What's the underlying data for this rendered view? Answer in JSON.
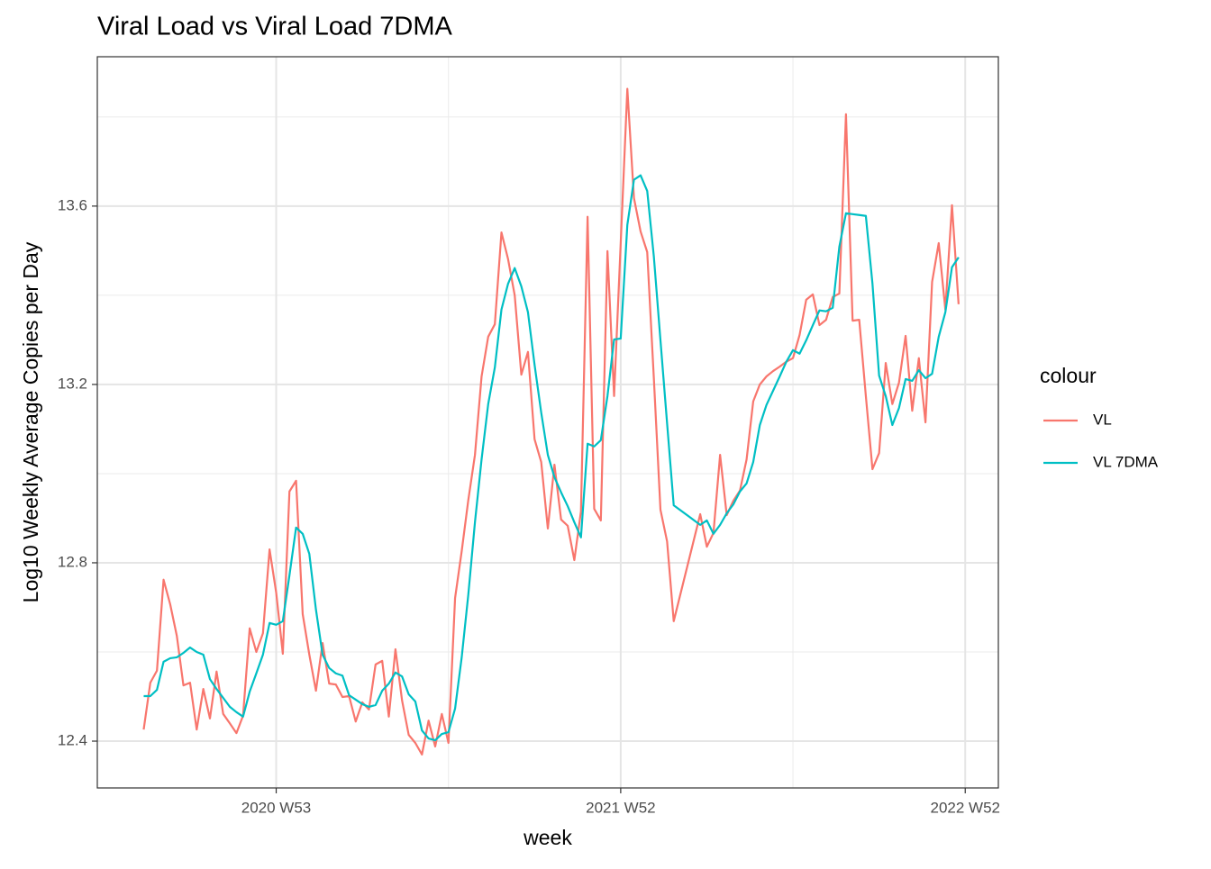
{
  "chart_data": {
    "type": "line",
    "title": "Viral Load vs Viral Load 7DMA",
    "x_label": "week",
    "y_label": "Log10 Weekly Average Copies per Day",
    "legend_title": "colour",
    "legend_position": "right",
    "x": [
      "2020 W33",
      "2020 W34",
      "2020 W35",
      "2020 W36",
      "2020 W37",
      "2020 W38",
      "2020 W39",
      "2020 W40",
      "2020 W41",
      "2020 W42",
      "2020 W43",
      "2020 W44",
      "2020 W45",
      "2020 W46",
      "2020 W47",
      "2020 W48",
      "2020 W49",
      "2020 W50",
      "2020 W51",
      "2020 W52",
      "2020 W53",
      "2021 W01",
      "2021 W02",
      "2021 W03",
      "2021 W04",
      "2021 W05",
      "2021 W06",
      "2021 W07",
      "2021 W08",
      "2021 W09",
      "2021 W10",
      "2021 W11",
      "2021 W12",
      "2021 W13",
      "2021 W14",
      "2021 W15",
      "2021 W16",
      "2021 W17",
      "2021 W18",
      "2021 W19",
      "2021 W20",
      "2021 W21",
      "2021 W22",
      "2021 W23",
      "2021 W24",
      "2021 W25",
      "2021 W26",
      "2021 W27",
      "2021 W28",
      "2021 W29",
      "2021 W30",
      "2021 W31",
      "2021 W32",
      "2021 W33",
      "2021 W34",
      "2021 W35",
      "2021 W36",
      "2021 W37",
      "2021 W38",
      "2021 W39",
      "2021 W40",
      "2021 W41",
      "2021 W42",
      "2021 W43",
      "2021 W44",
      "2021 W45",
      "2021 W46",
      "2021 W47",
      "2021 W48",
      "2021 W49",
      "2021 W50",
      "2021 W51",
      "2021 W52",
      "2022 W01",
      "2022 W02",
      "2022 W03",
      "2022 W04",
      "2022 W05",
      "2022 W06",
      "2022 W07",
      "2022 W08",
      "2022 W12",
      "2022 W13",
      "2022 W14",
      "2022 W15",
      "2022 W16",
      "2022 W17",
      "2022 W18",
      "2022 W19",
      "2022 W20",
      "2022 W21",
      "2022 W22",
      "2022 W23",
      "2022 W24",
      "2022 W25",
      "2022 W26",
      "2022 W27",
      "2022 W28",
      "2022 W29",
      "2022 W30",
      "2022 W31",
      "2022 W32",
      "2022 W33",
      "2022 W34",
      "2022 W35",
      "2022 W36",
      "2022 W37",
      "2022 W38",
      "2022 W39",
      "2022 W40",
      "2022 W41",
      "2022 W42",
      "2022 W43",
      "2022 W44",
      "2022 W45",
      "2022 W46",
      "2022 W47",
      "2022 W48",
      "2022 W49",
      "2022 W50",
      "2022 W51"
    ],
    "series": [
      {
        "name": "VL",
        "color": "#F8766D",
        "values": [
          12.426,
          12.531,
          12.558,
          12.762,
          12.707,
          12.636,
          12.525,
          12.531,
          12.426,
          12.517,
          12.451,
          12.556,
          12.461,
          12.44,
          12.418,
          12.457,
          12.653,
          12.6,
          12.642,
          12.83,
          12.733,
          12.596,
          12.96,
          12.984,
          12.685,
          12.594,
          12.513,
          12.62,
          12.529,
          12.527,
          12.499,
          12.501,
          12.444,
          12.487,
          12.471,
          12.572,
          12.58,
          12.455,
          12.606,
          12.491,
          12.414,
          12.396,
          12.37,
          12.446,
          12.388,
          12.461,
          12.396,
          12.721,
          12.826,
          12.941,
          13.042,
          13.218,
          13.307,
          13.335,
          13.541,
          13.481,
          13.4,
          13.222,
          13.273,
          13.077,
          13.026,
          12.877,
          13.02,
          12.897,
          12.883,
          12.806,
          12.915,
          13.576,
          12.921,
          12.895,
          13.499,
          13.174,
          13.517,
          13.863,
          13.618,
          13.543,
          13.497,
          13.214,
          12.919,
          12.848,
          12.669,
          12.909,
          12.836,
          12.867,
          13.042,
          12.907,
          12.939,
          12.962,
          13.032,
          13.162,
          13.2,
          13.218,
          13.23,
          13.24,
          13.251,
          13.259,
          13.311,
          13.39,
          13.402,
          13.333,
          13.345,
          13.396,
          13.404,
          13.806,
          13.343,
          13.345,
          13.174,
          13.01,
          13.046,
          13.248,
          13.156,
          13.204,
          13.309,
          13.141,
          13.259,
          13.115,
          13.43,
          13.517,
          13.368,
          13.602,
          13.38
        ]
      },
      {
        "name": "VL 7DMA",
        "color": "#00BFC4",
        "values": [
          12.501,
          12.501,
          12.515,
          12.578,
          12.586,
          12.588,
          12.598,
          12.61,
          12.6,
          12.594,
          12.539,
          12.517,
          12.497,
          12.477,
          12.465,
          12.455,
          12.511,
          12.552,
          12.594,
          12.665,
          12.661,
          12.669,
          12.772,
          12.879,
          12.865,
          12.82,
          12.695,
          12.594,
          12.564,
          12.552,
          12.547,
          12.503,
          12.493,
          12.483,
          12.477,
          12.481,
          12.513,
          12.529,
          12.554,
          12.545,
          12.505,
          12.489,
          12.424,
          12.406,
          12.402,
          12.416,
          12.42,
          12.473,
          12.588,
          12.729,
          12.891,
          13.032,
          13.156,
          13.238,
          13.368,
          13.426,
          13.461,
          13.42,
          13.362,
          13.244,
          13.137,
          13.042,
          12.992,
          12.958,
          12.927,
          12.891,
          12.857,
          13.067,
          13.061,
          13.075,
          13.174,
          13.301,
          13.303,
          13.558,
          13.659,
          13.669,
          13.634,
          13.487,
          13.299,
          13.113,
          12.929,
          12.885,
          12.895,
          12.865,
          12.885,
          12.911,
          12.931,
          12.96,
          12.978,
          13.026,
          13.109,
          13.154,
          13.186,
          13.218,
          13.251,
          13.277,
          13.269,
          13.299,
          13.333,
          13.366,
          13.364,
          13.372,
          13.509,
          13.584,
          13.582,
          13.58,
          13.578,
          13.426,
          13.22,
          13.174,
          13.109,
          13.147,
          13.212,
          13.208,
          13.232,
          13.214,
          13.224,
          13.307,
          13.362,
          13.463,
          13.485
        ]
      }
    ],
    "xlim": [
      "2020 W26",
      "2023 W05"
    ],
    "xticks": [
      "2020 W53",
      "2021 W52",
      "2022 W52"
    ],
    "x_minor_grid": [
      "2021 W26",
      "2022 W26"
    ],
    "ylim": [
      12.295,
      13.935
    ],
    "yticks": [
      12.4,
      12.8,
      13.2,
      13.6
    ],
    "y_minor_grid": [
      12.6,
      13.0,
      13.4,
      13.8
    ],
    "grid": true
  }
}
